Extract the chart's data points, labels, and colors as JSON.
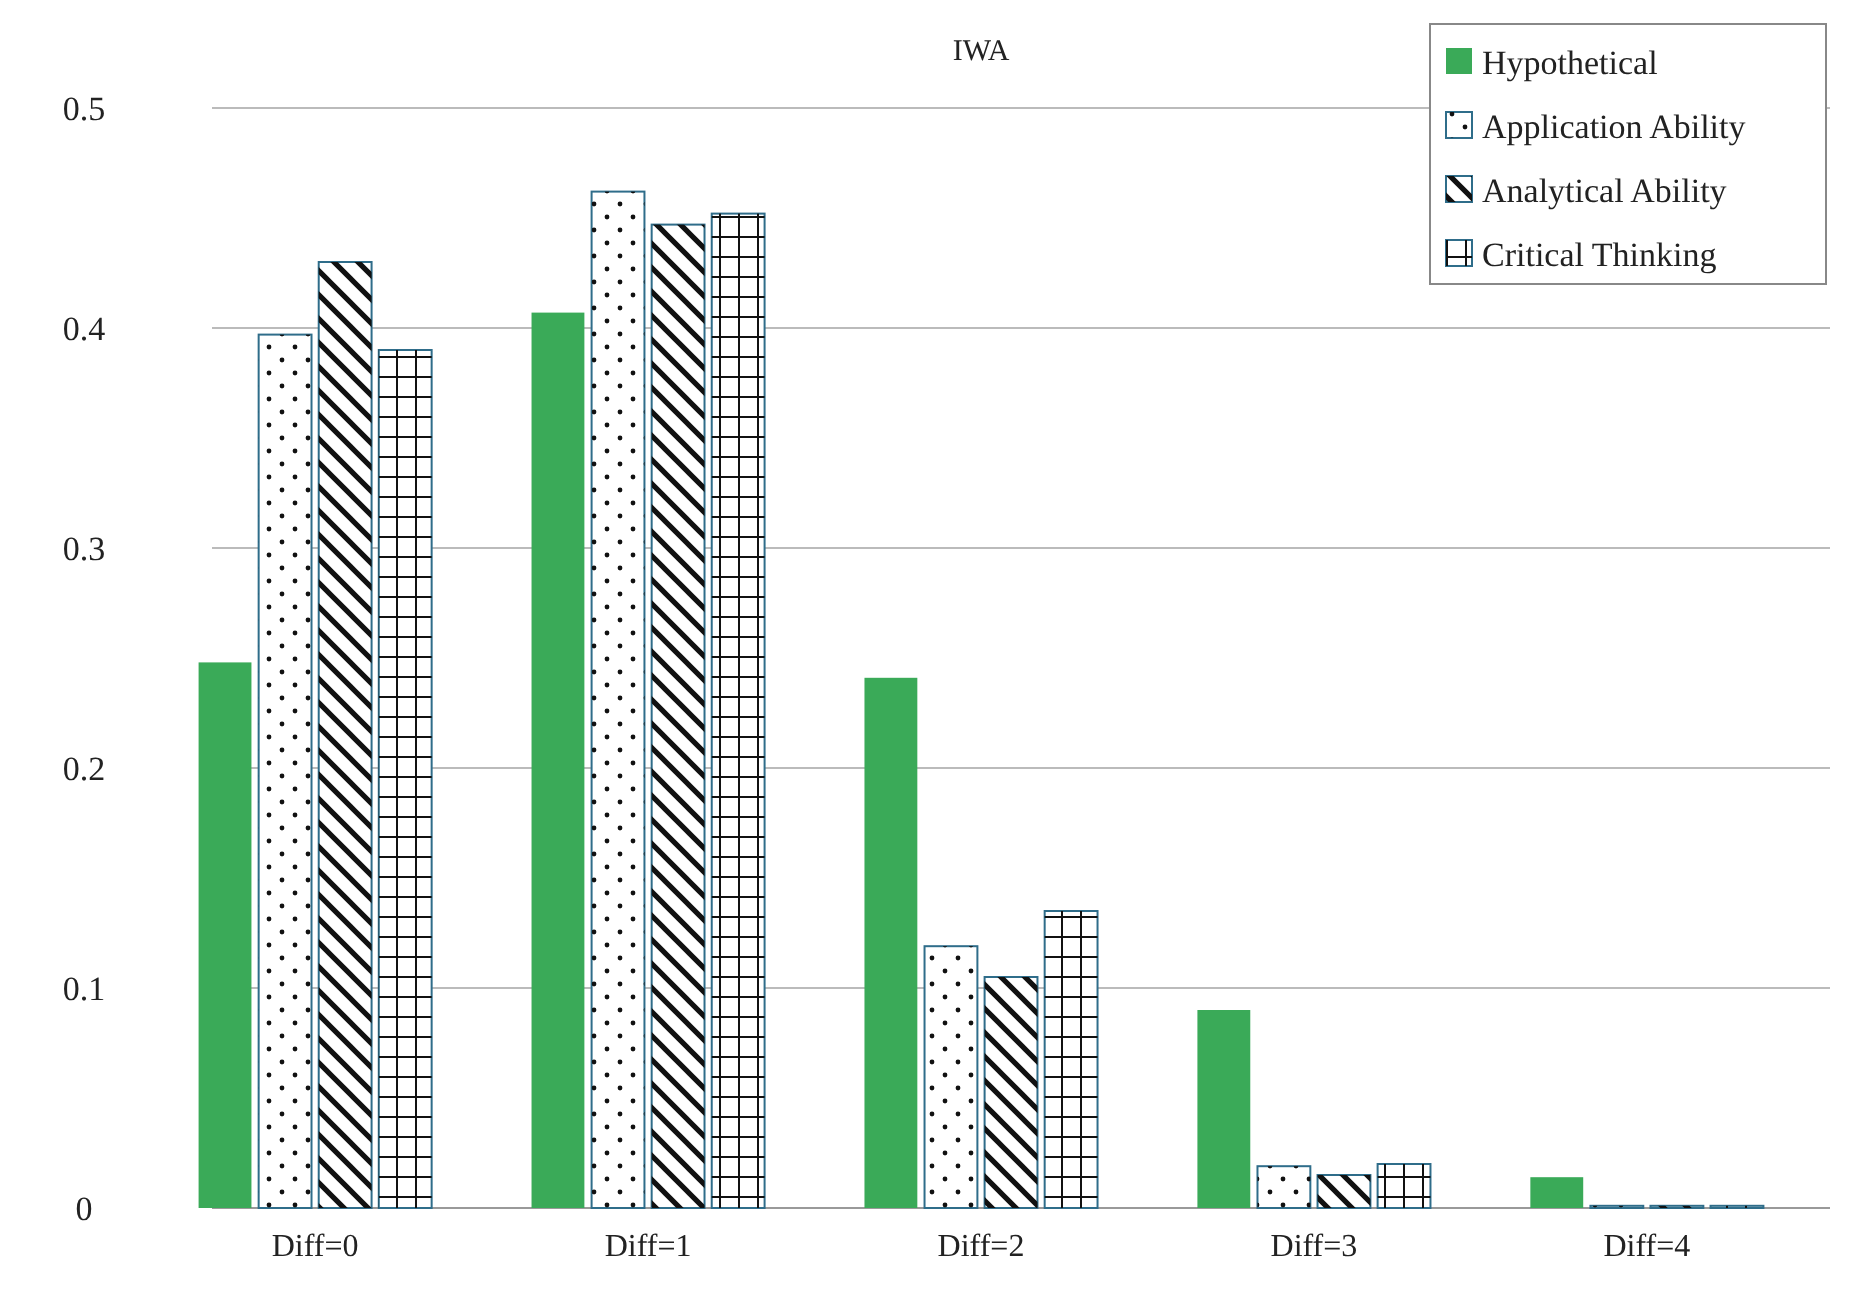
{
  "chart_data": {
    "type": "bar",
    "title": "IWA",
    "categories": [
      "Diff=0",
      "Diff=1",
      "Diff=2",
      "Diff=3",
      "Diff=4"
    ],
    "series": [
      {
        "name": "Hypothetical",
        "color": "#3aaa58",
        "values": [
          0.248,
          0.407,
          0.241,
          0.09,
          0.014
        ]
      },
      {
        "name": "Application Ability",
        "color": "#ffffff",
        "values": [
          0.397,
          0.462,
          0.119,
          0.019,
          0.001
        ]
      },
      {
        "name": "Analytical Ability",
        "color": "#ffffff",
        "values": [
          0.43,
          0.447,
          0.105,
          0.015,
          0.001
        ]
      },
      {
        "name": "Critical Thinking",
        "color": "#ffffff",
        "values": [
          0.39,
          0.452,
          0.135,
          0.02,
          0.001
        ]
      }
    ],
    "ylim": [
      0,
      0.5
    ],
    "yticks": [
      0,
      0.1,
      0.2,
      0.3,
      0.4,
      0.5
    ],
    "grid": "y",
    "legend": "top right"
  }
}
